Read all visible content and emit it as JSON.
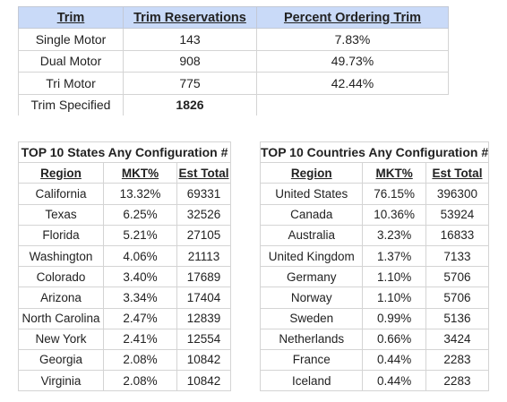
{
  "trim": {
    "headers": [
      "Trim",
      "Trim Reservations",
      "Percent Ordering Trim"
    ],
    "rows": [
      [
        "Single Motor",
        "143",
        "7.83%"
      ],
      [
        "Dual Motor",
        "908",
        "49.73%"
      ],
      [
        "Tri Motor",
        "775",
        "42.44%"
      ]
    ],
    "total_label": "Trim Specified",
    "total_value": "1826"
  },
  "states": {
    "title": "TOP 10 States Any Configuration #",
    "headers": [
      "Region",
      "MKT%",
      "Est Total"
    ],
    "rows": [
      [
        "California",
        "13.32%",
        "69331"
      ],
      [
        "Texas",
        "6.25%",
        "32526"
      ],
      [
        "Florida",
        "5.21%",
        "27105"
      ],
      [
        "Washington",
        "4.06%",
        "21113"
      ],
      [
        "Colorado",
        "3.40%",
        "17689"
      ],
      [
        "Arizona",
        "3.34%",
        "17404"
      ],
      [
        "North Carolina",
        "2.47%",
        "12839"
      ],
      [
        "New York",
        "2.41%",
        "12554"
      ],
      [
        "Georgia",
        "2.08%",
        "10842"
      ],
      [
        "Virginia",
        "2.08%",
        "10842"
      ]
    ]
  },
  "countries": {
    "title": "TOP 10 Countries Any Configuration #",
    "headers": [
      "Region",
      "MKT%",
      "Est Total"
    ],
    "rows": [
      [
        "United States",
        "76.15%",
        "396300"
      ],
      [
        "Canada",
        "10.36%",
        "53924"
      ],
      [
        "Australia",
        "3.23%",
        "16833"
      ],
      [
        "United Kingdom",
        "1.37%",
        "7133"
      ],
      [
        "Germany",
        "1.10%",
        "5706"
      ],
      [
        "Norway",
        "1.10%",
        "5706"
      ],
      [
        "Sweden",
        "0.99%",
        "5136"
      ],
      [
        "Netherlands",
        "0.66%",
        "3424"
      ],
      [
        "France",
        "0.44%",
        "2283"
      ],
      [
        "Iceland",
        "0.44%",
        "2283"
      ]
    ]
  }
}
